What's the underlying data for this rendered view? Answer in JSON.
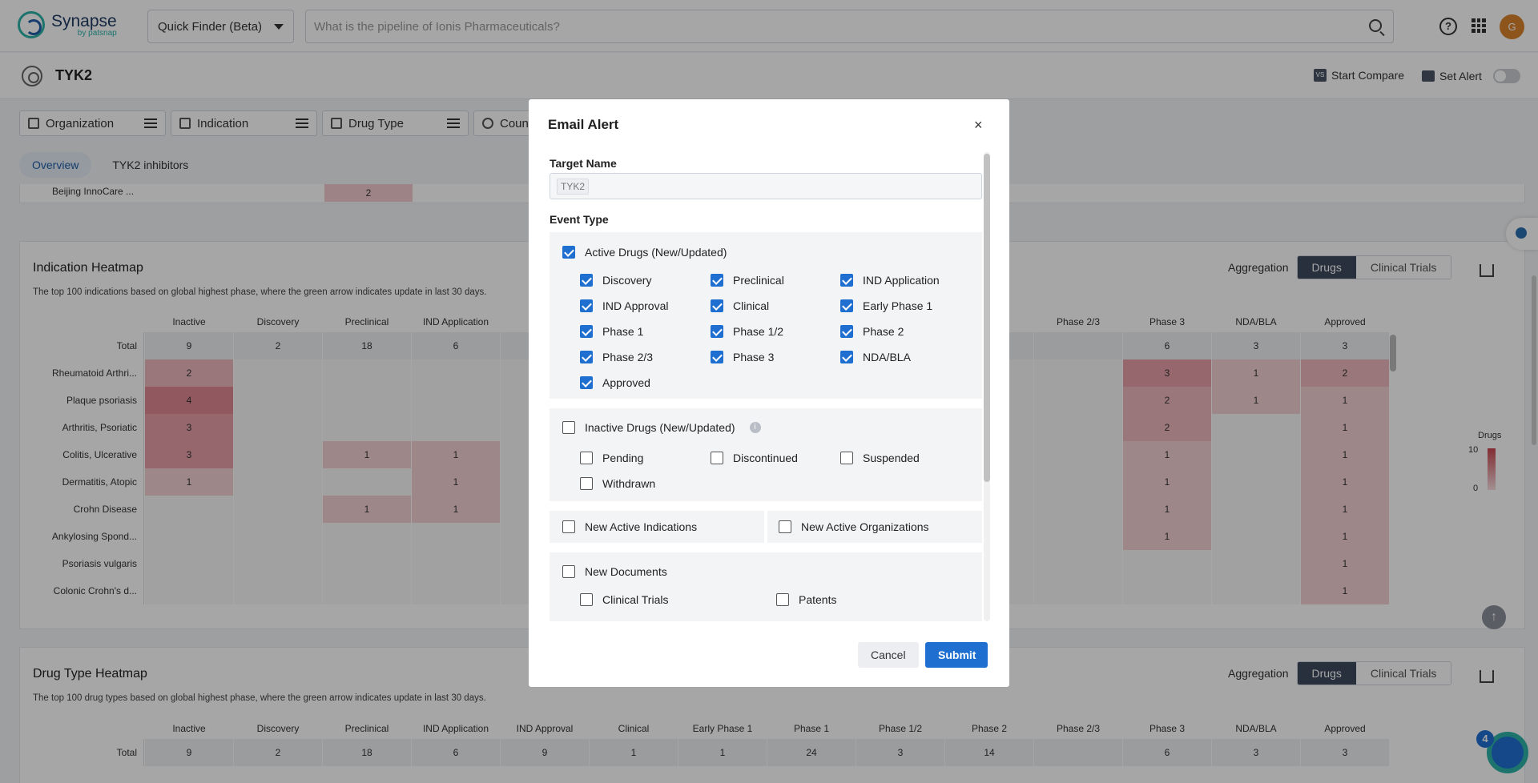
{
  "header": {
    "brand": "Synapse",
    "brand_sub": "by patsnap",
    "finder_label": "Quick Finder (Beta)",
    "search_placeholder": "What is the pipeline of Ionis Pharmaceuticals?",
    "help_icon": "?",
    "avatar_initial": "G"
  },
  "subheader": {
    "title": "TYK2",
    "compare_icon_text": "VS",
    "compare_label": "Start Compare",
    "alert_label": "Set Alert"
  },
  "filters": [
    {
      "label": "Organization"
    },
    {
      "label": "Indication"
    },
    {
      "label": "Drug Type"
    },
    {
      "label": "Count"
    }
  ],
  "tabs": [
    {
      "label": "Overview"
    },
    {
      "label": "TYK2 inhibitors"
    }
  ],
  "prev_row": {
    "label": "Beijing InnoCare ...",
    "value": "2"
  },
  "indication_heatmap": {
    "title": "Indication Heatmap",
    "desc": "The top 100 indications based on global highest phase, where the green arrow indicates update in last 30 days.",
    "aggregation_label": "Aggregation",
    "seg_drugs": "Drugs",
    "seg_trials": "Clinical Trials",
    "columns": [
      "Inactive",
      "Discovery",
      "Preclinical",
      "IND Application",
      "IND",
      "",
      "",
      "",
      "",
      "",
      "Phase 2/3",
      "Phase 3",
      "NDA/BLA",
      "Approved"
    ],
    "rows": [
      {
        "label": "Total",
        "values": [
          "9",
          "2",
          "18",
          "6",
          "",
          "",
          "",
          "",
          "",
          "",
          "",
          "6",
          "3",
          "3"
        ]
      },
      {
        "label": "Rheumatoid Arthri...",
        "values": [
          "2",
          "",
          "",
          "",
          "",
          "",
          "",
          "",
          "",
          "",
          "",
          "3",
          "1",
          "2"
        ]
      },
      {
        "label": "Plaque psoriasis",
        "values": [
          "4",
          "",
          "",
          "",
          "",
          "",
          "",
          "",
          "",
          "",
          "",
          "2",
          "1",
          "1"
        ]
      },
      {
        "label": "Arthritis, Psoriatic",
        "values": [
          "3",
          "",
          "",
          "",
          "",
          "",
          "",
          "",
          "",
          "",
          "",
          "2",
          "",
          "1"
        ]
      },
      {
        "label": "Colitis, Ulcerative",
        "values": [
          "3",
          "",
          "1",
          "1",
          "",
          "",
          "",
          "",
          "",
          "",
          "",
          "1",
          "",
          "1"
        ]
      },
      {
        "label": "Dermatitis, Atopic",
        "values": [
          "1",
          "",
          "",
          "1",
          "",
          "",
          "",
          "",
          "",
          "",
          "",
          "1",
          "",
          "1"
        ]
      },
      {
        "label": "Crohn Disease",
        "values": [
          "",
          "",
          "1",
          "1",
          "",
          "",
          "",
          "",
          "",
          "",
          "",
          "1",
          "",
          "1"
        ]
      },
      {
        "label": "Ankylosing Spond...",
        "values": [
          "",
          "",
          "",
          "",
          "",
          "",
          "",
          "",
          "",
          "",
          "",
          "1",
          "",
          "1"
        ]
      },
      {
        "label": "Psoriasis vulgaris",
        "values": [
          "",
          "",
          "",
          "",
          "",
          "",
          "",
          "",
          "",
          "",
          "",
          "",
          "",
          "1"
        ]
      },
      {
        "label": "Colonic Crohn's d...",
        "values": [
          "",
          "",
          "",
          "",
          "",
          "",
          "",
          "",
          "",
          "",
          "",
          "",
          "",
          "1"
        ]
      }
    ],
    "legend_title": "Drugs",
    "legend_max": "10",
    "legend_min": "0"
  },
  "drugtype_heatmap": {
    "title": "Drug Type Heatmap",
    "desc": "The top 100 drug types based on global highest phase, where the green arrow indicates update in last 30 days.",
    "aggregation_label": "Aggregation",
    "seg_drugs": "Drugs",
    "seg_trials": "Clinical Trials",
    "columns": [
      "Inactive",
      "Discovery",
      "Preclinical",
      "IND Application",
      "IND Approval",
      "Clinical",
      "Early Phase 1",
      "Phase 1",
      "Phase 1/2",
      "Phase 2",
      "Phase 2/3",
      "Phase 3",
      "NDA/BLA",
      "Approved"
    ],
    "total": {
      "label": "Total",
      "values": [
        "9",
        "2",
        "18",
        "6",
        "9",
        "1",
        "1",
        "24",
        "3",
        "14",
        "",
        "6",
        "3",
        "3"
      ]
    }
  },
  "modal": {
    "title": "Email Alert",
    "close_icon": "×",
    "target_name_label": "Target Name",
    "target_tag": "TYK2",
    "event_type_label": "Event Type",
    "active_drugs": {
      "label": "Active Drugs (New/Updated)",
      "items": [
        "Discovery",
        "Preclinical",
        "IND Application",
        "IND Approval",
        "Clinical",
        "Early Phase 1",
        "Phase 1",
        "Phase 1/2",
        "Phase 2",
        "Phase 2/3",
        "Phase 3",
        "NDA/BLA",
        "Approved"
      ]
    },
    "inactive_drugs": {
      "label": "Inactive Drugs (New/Updated)",
      "info_icon": "i",
      "items": [
        "Pending",
        "Discontinued",
        "Suspended",
        "Withdrawn"
      ]
    },
    "new_active_indications": "New Active Indications",
    "new_active_organizations": "New Active Organizations",
    "new_documents": {
      "label": "New Documents",
      "items": [
        "Clinical Trials",
        "Patents"
      ]
    },
    "cancel_label": "Cancel",
    "submit_label": "Submit"
  },
  "float": {
    "up_arrow": "↑",
    "badge_count": "4"
  },
  "colors": {
    "primary": "#1f6fd1",
    "brand_teal": "#2bb3a8",
    "heat": "#c8474f"
  }
}
